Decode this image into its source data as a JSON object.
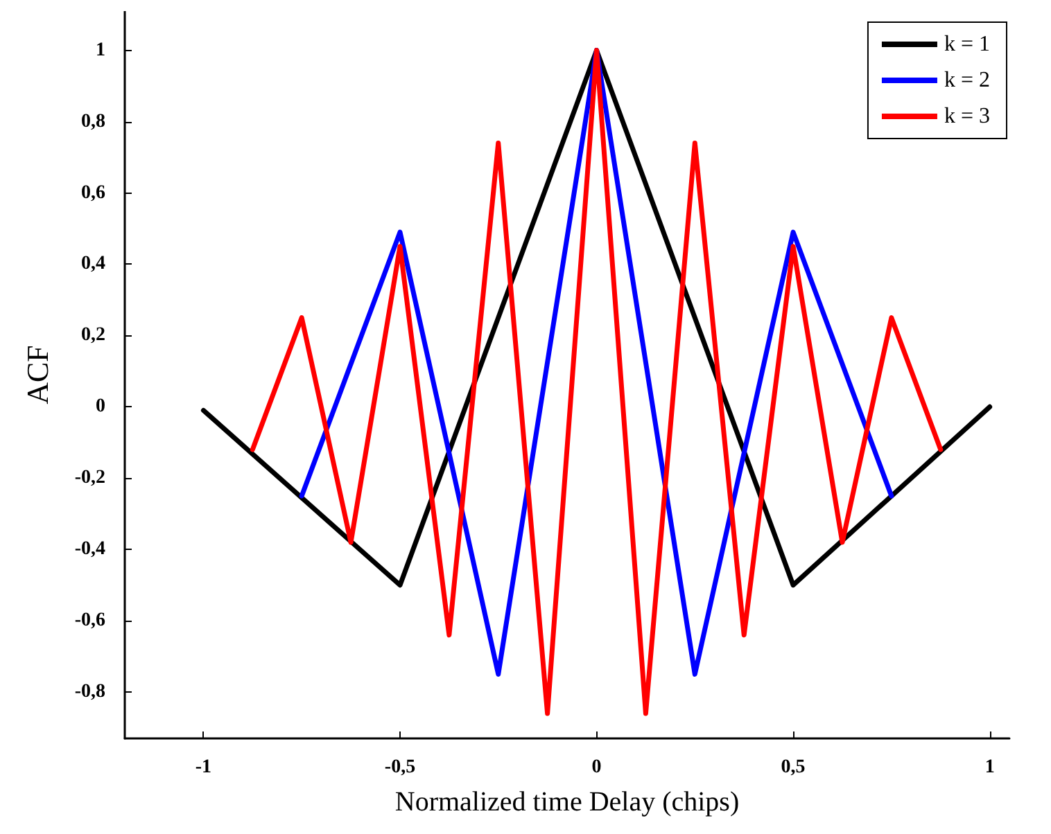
{
  "chart_data": {
    "type": "line",
    "xlabel": "Normalized time Delay (chips)",
    "ylabel": "ACF",
    "series": [
      {
        "name": "k = 1",
        "color": "#000000",
        "x": [
          -1,
          -0.5,
          0,
          0.5,
          1
        ],
        "values": [
          -0.01,
          -0.5,
          1,
          -0.5,
          0
        ]
      },
      {
        "name": "k = 2",
        "color": "#0000ff",
        "x": [
          -0.75,
          -0.5,
          -0.25,
          0,
          0.25,
          0.5,
          0.75
        ],
        "values": [
          -0.25,
          0.49,
          -0.75,
          1,
          -0.75,
          0.49,
          -0.25
        ]
      },
      {
        "name": "k = 3",
        "color": "#ff0000",
        "x": [
          -0.875,
          -0.75,
          -0.625,
          -0.5,
          -0.375,
          -0.25,
          -0.125,
          0,
          0.125,
          0.25,
          0.375,
          0.5,
          0.625,
          0.75,
          0.875
        ],
        "values": [
          -0.12,
          0.25,
          -0.38,
          0.45,
          -0.64,
          0.74,
          -0.86,
          1,
          -0.86,
          0.74,
          -0.64,
          0.45,
          -0.38,
          0.25,
          -0.12
        ]
      }
    ],
    "xlim": [
      -1.2,
      1.05
    ],
    "xticks": [
      {
        "value": -1,
        "label": "-1"
      },
      {
        "value": -0.5,
        "label": "-0,5"
      },
      {
        "value": 0,
        "label": "0"
      },
      {
        "value": 0.5,
        "label": "0,5"
      },
      {
        "value": 1,
        "label": "1"
      }
    ],
    "ylim": [
      -0.93,
      1.11
    ],
    "yticks": [
      {
        "value": -0.8,
        "label": "-0,8"
      },
      {
        "value": -0.6,
        "label": "-0,6"
      },
      {
        "value": -0.4,
        "label": "-0,4"
      },
      {
        "value": -0.2,
        "label": "-0,2"
      },
      {
        "value": 0,
        "label": "0"
      },
      {
        "value": 0.2,
        "label": "0,2"
      },
      {
        "value": 0.4,
        "label": "0,4"
      },
      {
        "value": 0.6,
        "label": "0,6"
      },
      {
        "value": 0.8,
        "label": "0,8"
      },
      {
        "value": 1,
        "label": "1"
      }
    ],
    "grid": false,
    "legend": "top right",
    "marker": "none",
    "line_style": "solid"
  }
}
